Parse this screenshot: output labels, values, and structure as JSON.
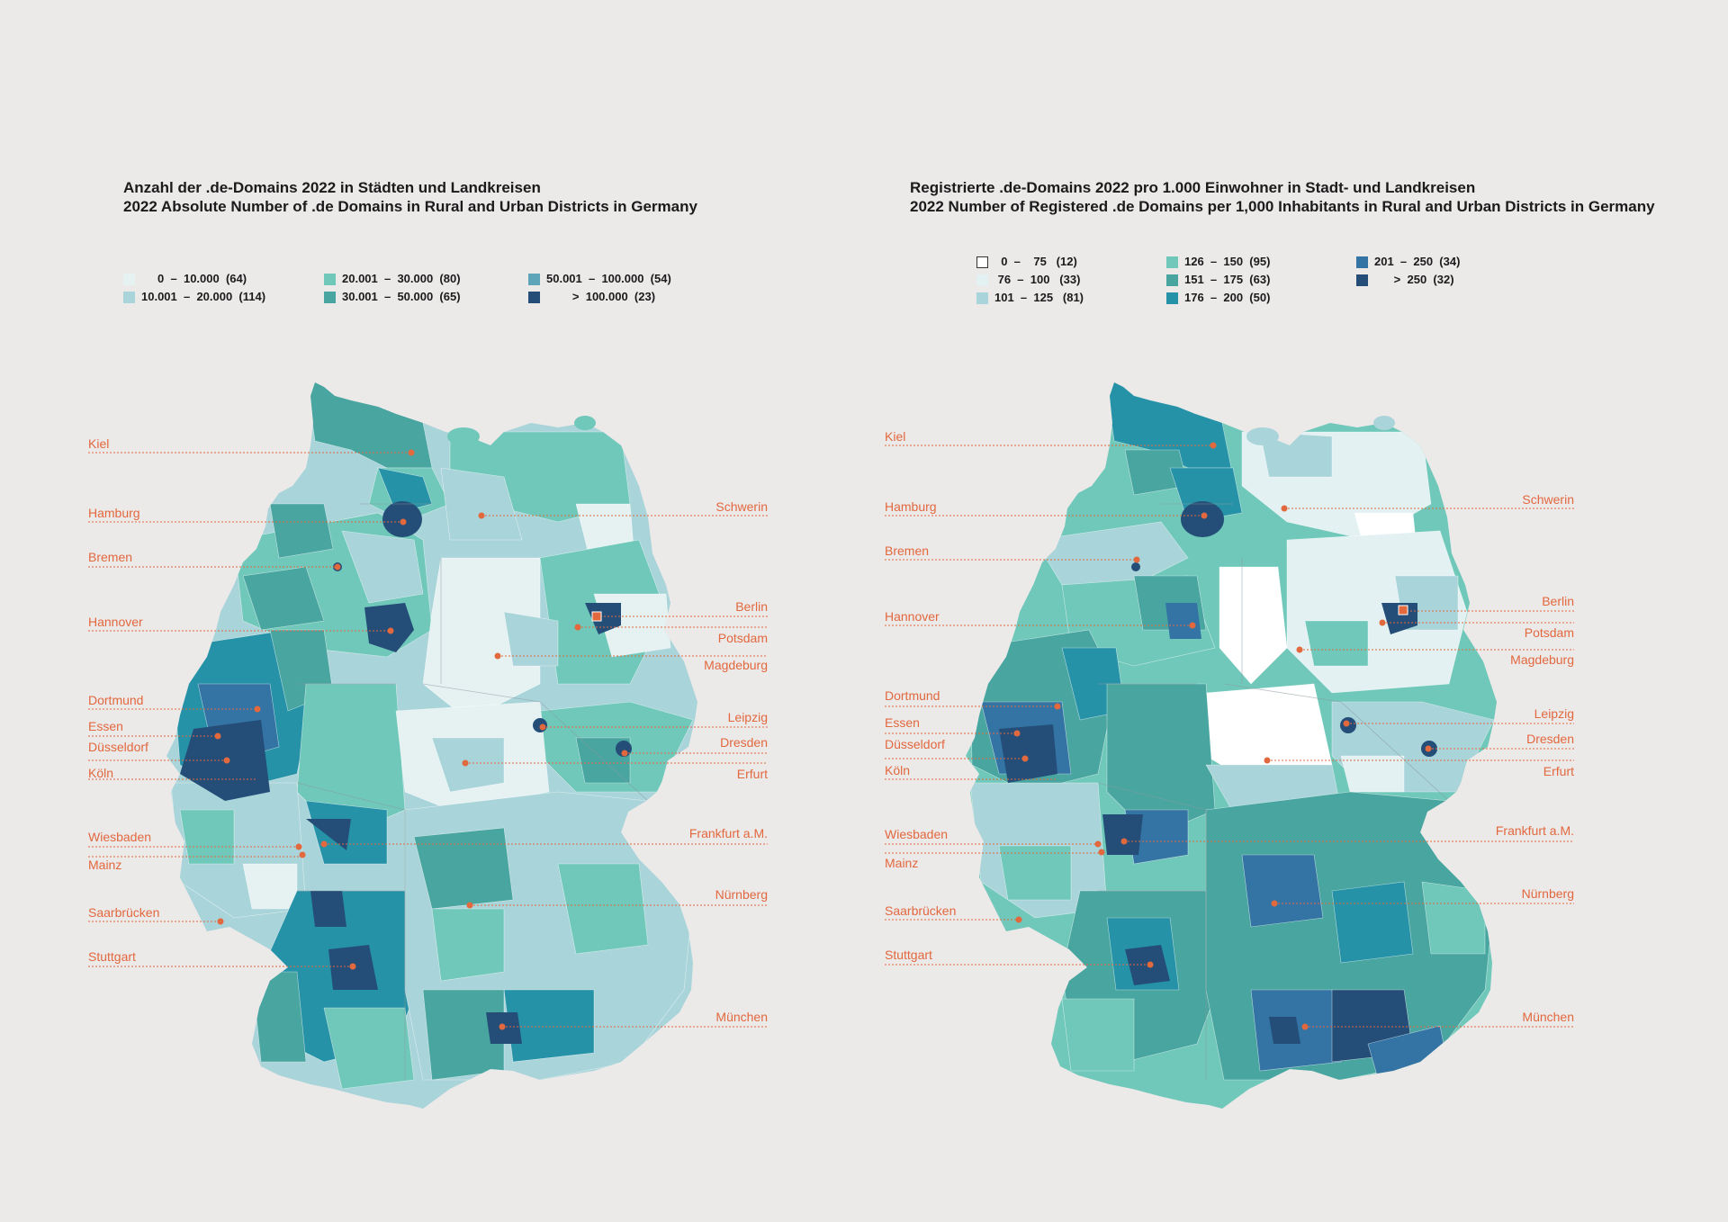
{
  "left": {
    "title_line1": "Anzahl der .de-Domains 2022 in Städten und Landkreisen",
    "title_line2": "2022 Absolute Number of .de Domains in Rural and Urban Districts in Germany",
    "legend": [
      {
        "label": "     0  –  10.000  (64)",
        "color": "#e6f2f2"
      },
      {
        "label": "10.001  –  20.000  (114)",
        "color": "#a9d4d9"
      },
      {
        "label": "20.001  –  30.000  (80)",
        "color": "#6fc8b9"
      },
      {
        "label": "30.001  –  50.000  (65)",
        "color": "#48a5a0"
      },
      {
        "label": "50.001  –  100.000  (54)",
        "color": "#5ea5b9"
      },
      {
        "label": "        >  100.000  (23)",
        "color": "#244e78"
      }
    ]
  },
  "right": {
    "title_line1": "Registrierte .de-Domains 2022 pro 1.000 Einwohner in Stadt- und Landkreisen",
    "title_line2": "2022 Number of Registered .de Domains per 1,000 Inhabitants in Rural and Urban Districts in Germany",
    "legend": [
      {
        "label": "  0  –    75   (12)",
        "color": "#ffffff"
      },
      {
        "label": " 76  –  100   (33)",
        "color": "#e3f1f2"
      },
      {
        "label": "101  –  125   (81)",
        "color": "#a9d4d9"
      },
      {
        "label": "126  –  150  (95)",
        "color": "#6fc8b9"
      },
      {
        "label": "151  –  175  (63)",
        "color": "#48a5a0"
      },
      {
        "label": "176  –  200  (50)",
        "color": "#2592a7"
      },
      {
        "label": "201  –  250  (34)",
        "color": "#3374a4"
      },
      {
        "label": "      >  250  (32)",
        "color": "#244e78"
      }
    ]
  },
  "cities": {
    "kiel": "Kiel",
    "hamburg": "Hamburg",
    "bremen": "Bremen",
    "hannover": "Hannover",
    "dortmund": "Dortmund",
    "essen": "Essen",
    "duesseldorf": "Düsseldorf",
    "koeln": "Köln",
    "wiesbaden": "Wiesbaden",
    "mainz": "Mainz",
    "saarbruecken": "Saarbrücken",
    "stuttgart": "Stuttgart",
    "schwerin": "Schwerin",
    "berlin": "Berlin",
    "potsdam": "Potsdam",
    "magdeburg": "Magdeburg",
    "leipzig": "Leipzig",
    "dresden": "Dresden",
    "erfurt": "Erfurt",
    "frankfurt": "Frankfurt a.M.",
    "nuernberg": "Nürnberg",
    "muenchen": "München"
  },
  "colors": {
    "accent": "#e2683e",
    "background": "#ece9e9"
  }
}
